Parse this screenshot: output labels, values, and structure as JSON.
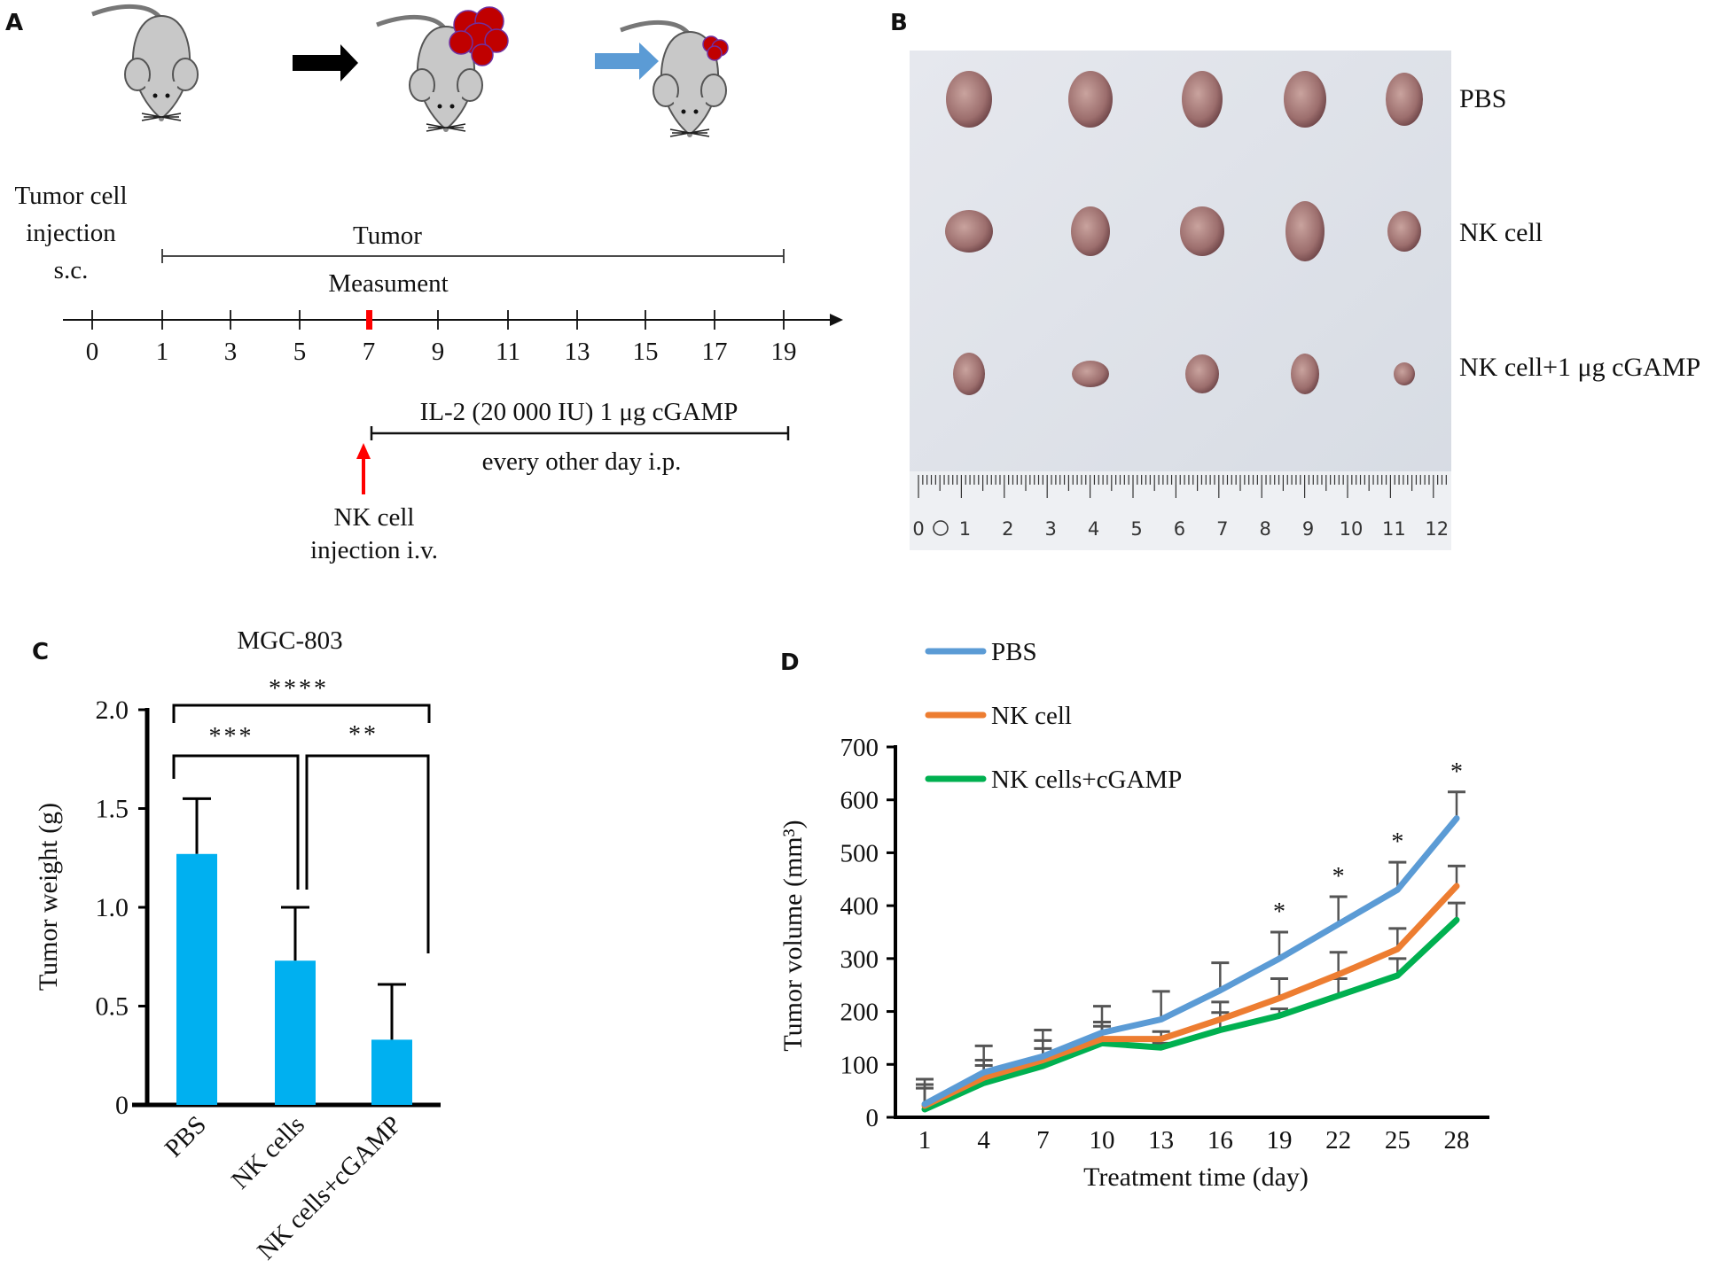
{
  "panel_labels": {
    "a": "A",
    "b": "B",
    "c": "C",
    "d": "D"
  },
  "panel_a": {
    "injection_label_lines": [
      "Tumor cell",
      "injection",
      "s.c."
    ],
    "tumor_label": "Tumor",
    "measurement_label": "Measument",
    "timeline_ticks": [
      "0",
      "1",
      "3",
      "5",
      "7",
      "9",
      "11",
      "13",
      "15",
      "17",
      "19"
    ],
    "treatment_label": "IL-2 (20 000 IU) 1 μg cGAMP",
    "treatment_schedule": "every other day i.p.",
    "nk_injection_lines": [
      "NK cell",
      "injection i.v."
    ],
    "colors": {
      "tumor": "#c00000",
      "arrow_black": "#000000",
      "arrow_blue": "#5b9bd5",
      "nk_arrow": "#ff0000",
      "mouse": "#c8c8c8"
    }
  },
  "panel_b": {
    "row_labels": [
      "PBS",
      "NK cell",
      "NK cell+1 μg cGAMP"
    ],
    "ruler_numbers": [
      "0",
      "1",
      "2",
      "3",
      "4",
      "5",
      "6",
      "7",
      "8",
      "9",
      "10",
      "11",
      "12"
    ]
  },
  "chart_data": [
    {
      "type": "bar",
      "title": "MGC-803",
      "categories": [
        "PBS",
        "NK cells",
        "NK cells+cGAMP"
      ],
      "values": [
        1.27,
        0.73,
        0.33
      ],
      "error_upper": [
        0.28,
        0.27,
        0.28
      ],
      "xlabel": "",
      "ylabel": "Tumor weight (g)",
      "ylim": [
        0,
        2.0
      ],
      "yticks": [
        "0",
        "0.5",
        "1.0",
        "1.5",
        "2.0"
      ],
      "bar_color": "#00b0f0",
      "significance": [
        {
          "from": "PBS",
          "to": "NK cells+cGAMP",
          "label": "****"
        },
        {
          "from": "PBS",
          "to": "NK cells",
          "label": "***"
        },
        {
          "from": "NK cells",
          "to": "NK cells+cGAMP",
          "label": "**"
        }
      ]
    },
    {
      "type": "line",
      "x": [
        1,
        4,
        7,
        10,
        13,
        16,
        19,
        22,
        25,
        28
      ],
      "series": [
        {
          "name": "PBS",
          "color": "#5b9bd5",
          "values": [
            25,
            85,
            115,
            160,
            185,
            240,
            300,
            365,
            430,
            565
          ],
          "error_top": [
            72,
            135,
            165,
            210,
            238,
            292,
            350,
            417,
            482,
            615
          ]
        },
        {
          "name": "NK cell",
          "color": "#ed7d31",
          "values": [
            22,
            75,
            108,
            148,
            148,
            185,
            225,
            270,
            318,
            437
          ],
          "error_top": [
            62,
            108,
            145,
            180,
            162,
            218,
            262,
            312,
            357,
            475
          ]
        },
        {
          "name": "NK cells+cGAMP",
          "color": "#00b050",
          "values": [
            15,
            65,
            97,
            140,
            132,
            165,
            192,
            230,
            268,
            373
          ],
          "error_top": [
            55,
            98,
            130,
            172,
            140,
            198,
            205,
            262,
            300,
            405
          ]
        }
      ],
      "xlabel": "Treatment time (day)",
      "ylabel": "Tumor volume (mm³)",
      "ylim": [
        0,
        700
      ],
      "yticks": [
        "0",
        "100",
        "200",
        "300",
        "400",
        "500",
        "600",
        "700"
      ],
      "xticks": [
        "1",
        "4",
        "7",
        "10",
        "13",
        "16",
        "19",
        "22",
        "25",
        "28"
      ],
      "significance_marks": [
        {
          "x": 19,
          "label": "*"
        },
        {
          "x": 22,
          "label": "*"
        },
        {
          "x": 25,
          "label": "*"
        },
        {
          "x": 28,
          "label": "*"
        }
      ],
      "legend_position": "top-left"
    }
  ]
}
